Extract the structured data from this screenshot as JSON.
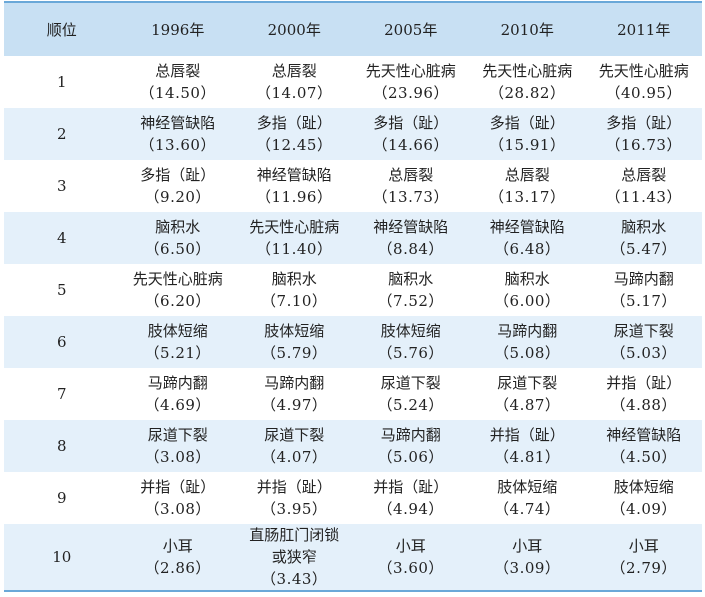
{
  "headers": [
    "顺位",
    "1996年",
    "2000年",
    "2005年",
    "2010年",
    "2011年"
  ],
  "rows": [
    {
      "rank": "1",
      "cells": [
        {
          "name": "总唇裂",
          "value": "（14.50）"
        },
        {
          "name": "总唇裂",
          "value": "（14.07）"
        },
        {
          "name": "先天性心脏病",
          "value": "（23.96）"
        },
        {
          "name": "先天性心脏病",
          "value": "（28.82）"
        },
        {
          "name": "先天性心脏病",
          "value": "（40.95）"
        }
      ]
    },
    {
      "rank": "2",
      "cells": [
        {
          "name": "神经管缺陷",
          "value": "（13.60）"
        },
        {
          "name": "多指（趾）",
          "value": "（12.45）"
        },
        {
          "name": "多指（趾）",
          "value": "（14.66）"
        },
        {
          "name": "多指（趾）",
          "value": "（15.91）"
        },
        {
          "name": "多指（趾）",
          "value": "（16.73）"
        }
      ]
    },
    {
      "rank": "3",
      "cells": [
        {
          "name": "多指（趾）",
          "value": "（9.20）"
        },
        {
          "name": "神经管缺陷",
          "value": "（11.96）"
        },
        {
          "name": "总唇裂",
          "value": "（13.73）"
        },
        {
          "name": "总唇裂",
          "value": "（13.17）"
        },
        {
          "name": "总唇裂",
          "value": "（11.43）"
        }
      ]
    },
    {
      "rank": "4",
      "cells": [
        {
          "name": "脑积水",
          "value": "（6.50）"
        },
        {
          "name": "先天性心脏病",
          "value": "（11.40）"
        },
        {
          "name": "神经管缺陷",
          "value": "（8.84）"
        },
        {
          "name": "神经管缺陷",
          "value": "（6.48）"
        },
        {
          "name": "脑积水",
          "value": "（5.47）"
        }
      ]
    },
    {
      "rank": "5",
      "cells": [
        {
          "name": "先天性心脏病",
          "value": "（6.20）"
        },
        {
          "name": "脑积水",
          "value": "（7.10）"
        },
        {
          "name": "脑积水",
          "value": "（7.52）"
        },
        {
          "name": "脑积水",
          "value": "（6.00）"
        },
        {
          "name": "马蹄内翻",
          "value": "（5.17）"
        }
      ]
    },
    {
      "rank": "6",
      "cells": [
        {
          "name": "肢体短缩",
          "value": "（5.21）"
        },
        {
          "name": "肢体短缩",
          "value": "（5.79）"
        },
        {
          "name": "肢体短缩",
          "value": "（5.76）"
        },
        {
          "name": "马蹄内翻",
          "value": "（5.08）"
        },
        {
          "name": "尿道下裂",
          "value": "（5.03）"
        }
      ]
    },
    {
      "rank": "7",
      "cells": [
        {
          "name": "马蹄内翻",
          "value": "（4.69）"
        },
        {
          "name": "马蹄内翻",
          "value": "（4.97）"
        },
        {
          "name": "尿道下裂",
          "value": "（5.24）"
        },
        {
          "name": "尿道下裂",
          "value": "（4.87）"
        },
        {
          "name": "并指（趾）",
          "value": "（4.88）"
        }
      ]
    },
    {
      "rank": "8",
      "cells": [
        {
          "name": "尿道下裂",
          "value": "（3.08）"
        },
        {
          "name": "尿道下裂",
          "value": "（4.07）"
        },
        {
          "name": "马蹄内翻",
          "value": "（5.06）"
        },
        {
          "name": "并指（趾）",
          "value": "（4.81）"
        },
        {
          "name": "神经管缺陷",
          "value": "（4.50）"
        }
      ]
    },
    {
      "rank": "9",
      "cells": [
        {
          "name": "并指（趾）",
          "value": "（3.08）"
        },
        {
          "name": "并指（趾）",
          "value": "（3.95）"
        },
        {
          "name": "并指（趾）",
          "value": "（4.94）"
        },
        {
          "name": "肢体短缩",
          "value": "（4.74）"
        },
        {
          "name": "肢体短缩",
          "value": "（4.09）"
        }
      ]
    },
    {
      "rank": "10",
      "cells": [
        {
          "name": "小耳",
          "value": "（2.86）"
        },
        {
          "name": "直肠肛门闭锁或狭窄",
          "value": "（3.43）"
        },
        {
          "name": "小耳",
          "value": "（3.60）"
        },
        {
          "name": "小耳",
          "value": "（3.09）"
        },
        {
          "name": "小耳",
          "value": "（2.79）"
        }
      ]
    }
  ],
  "colors": {
    "header_bg": "#c8e0f3",
    "stripe_bg": "#e4f0fa",
    "rule": "#6aa8d8"
  }
}
